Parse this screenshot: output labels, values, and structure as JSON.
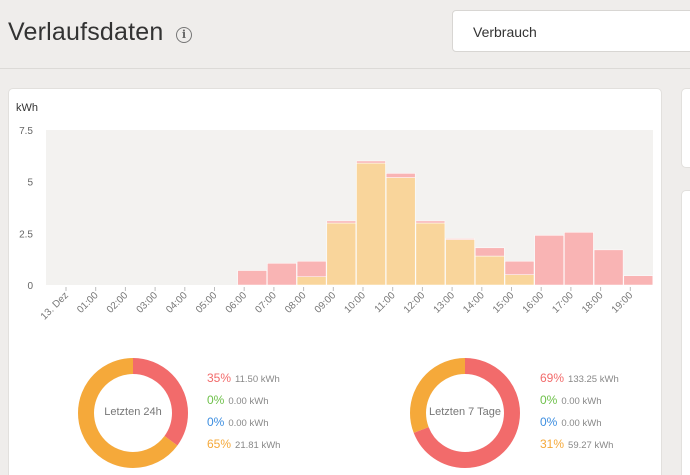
{
  "header": {
    "title": "Verlaufsdaten",
    "info_icon": "info-icon",
    "select_value": "Verbrauch"
  },
  "colors": {
    "solar": "#f9d59b",
    "grid": "#f9b4b4",
    "red": "#f26b6b",
    "green": "#6ec04a",
    "blue": "#3d8ee0",
    "orange": "#f5a93a"
  },
  "chart_data": {
    "type": "bar",
    "ylabel": "kWh",
    "ylim": [
      0,
      7.5
    ],
    "yticks": [
      "7.5",
      "5",
      "2.5",
      "0"
    ],
    "ytick_values": [
      7.5,
      5,
      2.5,
      0
    ],
    "categories": [
      "13. Dez",
      "01:00",
      "02:00",
      "03:00",
      "04:00",
      "05:00",
      "06:00",
      "07:00",
      "08:00",
      "09:00",
      "10:00",
      "11:00",
      "12:00",
      "13:00",
      "14:00",
      "15:00",
      "16:00",
      "17:00",
      "18:00",
      "19:00"
    ],
    "series": [
      {
        "values": [
          0,
          0,
          0,
          0,
          0,
          0,
          0,
          0,
          0.4,
          3.0,
          5.9,
          5.2,
          3.0,
          2.2,
          1.4,
          0.5,
          0,
          0,
          0,
          0
        ]
      },
      {
        "values": [
          0,
          0,
          0,
          0,
          0,
          0,
          0.7,
          1.05,
          0.75,
          0.1,
          0.1,
          0.2,
          0.1,
          0.05,
          0.4,
          0.65,
          2.4,
          2.55,
          1.7,
          0.45
        ]
      }
    ]
  },
  "donut_24h": {
    "label": "Letzten 24h",
    "segments": [
      {
        "pct": "35%",
        "kwh": "11.50 kWh",
        "fraction": 0.35,
        "color": "#f26b6b"
      },
      {
        "pct": "0%",
        "kwh": "0.00 kWh",
        "fraction": 0,
        "color": "#6ec04a"
      },
      {
        "pct": "0%",
        "kwh": "0.00 kWh",
        "fraction": 0,
        "color": "#3d8ee0"
      },
      {
        "pct": "65%",
        "kwh": "21.81 kWh",
        "fraction": 0.65,
        "color": "#f5a93a"
      }
    ]
  },
  "donut_7d": {
    "label": "Letzten 7 Tage",
    "segments": [
      {
        "pct": "69%",
        "kwh": "133.25 kWh",
        "fraction": 0.69,
        "color": "#f26b6b"
      },
      {
        "pct": "0%",
        "kwh": "0.00 kWh",
        "fraction": 0,
        "color": "#6ec04a"
      },
      {
        "pct": "0%",
        "kwh": "0.00 kWh",
        "fraction": 0,
        "color": "#3d8ee0"
      },
      {
        "pct": "31%",
        "kwh": "59.27 kWh",
        "fraction": 0.31,
        "color": "#f5a93a"
      }
    ]
  }
}
